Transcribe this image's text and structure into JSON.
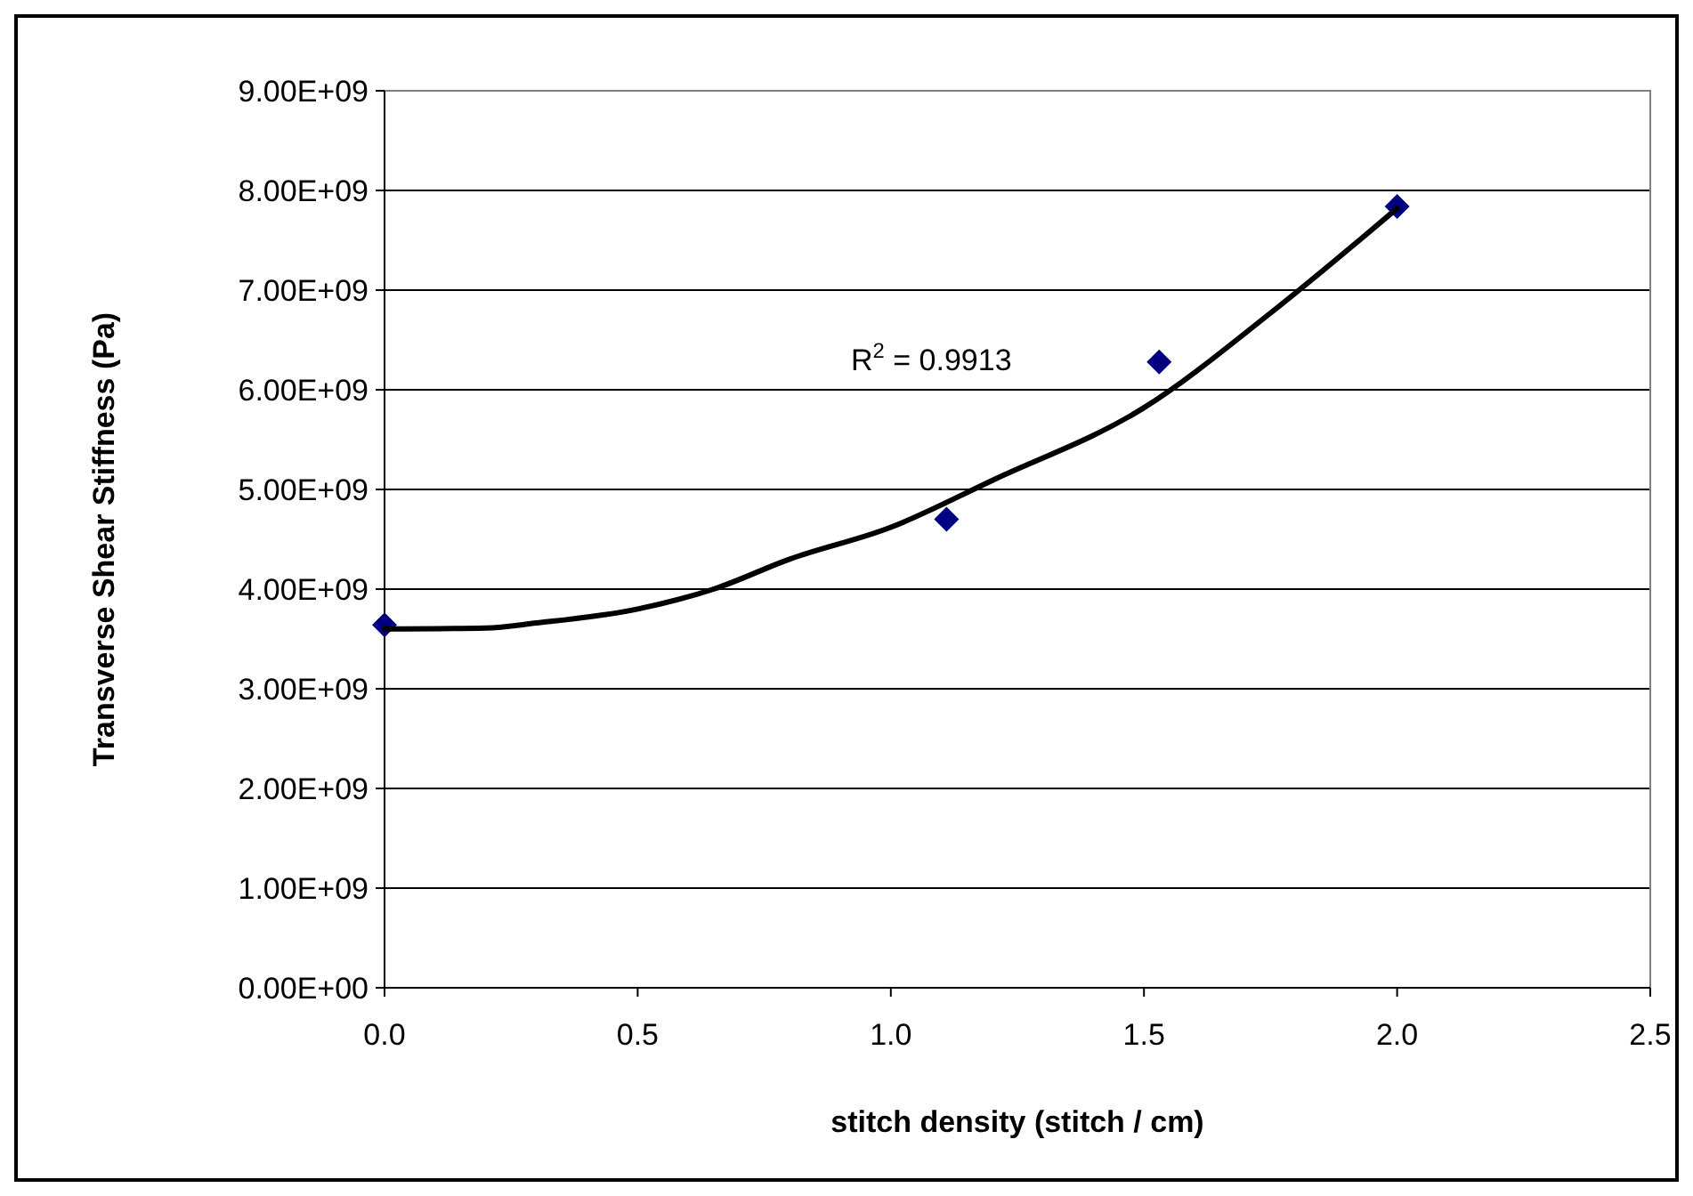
{
  "chart_data": {
    "type": "scatter",
    "xlabel": "stitch density (stitch / cm)",
    "ylabel": "Transverse Shear Stiffness (Pa)",
    "xlim": [
      0,
      2.5
    ],
    "xticks": [
      {
        "value": 0,
        "label": "0.0"
      },
      {
        "value": 0.5,
        "label": "0.5"
      },
      {
        "value": 1,
        "label": "1.0"
      },
      {
        "value": 1.5,
        "label": "1.5"
      },
      {
        "value": 2,
        "label": "2.0"
      },
      {
        "value": 2.5,
        "label": "2.5"
      }
    ],
    "ylim": [
      0,
      9000000000
    ],
    "yticks": [
      {
        "value": 0,
        "label": "0.00E+00"
      },
      {
        "value": 1000000000,
        "label": "1.00E+09"
      },
      {
        "value": 2000000000,
        "label": "2.00E+09"
      },
      {
        "value": 3000000000,
        "label": "3.00E+09"
      },
      {
        "value": 4000000000,
        "label": "4.00E+09"
      },
      {
        "value": 5000000000,
        "label": "5.00E+09"
      },
      {
        "value": 6000000000,
        "label": "6.00E+09"
      },
      {
        "value": 7000000000,
        "label": "7.00E+09"
      },
      {
        "value": 8000000000,
        "label": "8.00E+09"
      },
      {
        "value": 9000000000,
        "label": "9.00E+09"
      }
    ],
    "grid": "y",
    "marker": "diamond",
    "series": [
      {
        "color": "#000080",
        "x": [
          0,
          1.11,
          1.53,
          2.0
        ],
        "values": [
          3640000000,
          4700000000,
          6280000000,
          7840000000
        ]
      },
      {
        "type": "line",
        "color": "#000000",
        "marker": "none",
        "line_style": "solid",
        "x": [
          0,
          0.2,
          0.3,
          0.5,
          0.65,
          0.8,
          1.0,
          1.2,
          1.5,
          1.75,
          2.0
        ],
        "values": [
          3600000000,
          3610000000,
          3660000000,
          3800000000,
          4000000000,
          4300000000,
          4620000000,
          5090000000,
          5820000000,
          6770000000,
          7820000000
        ]
      }
    ],
    "annotations": [
      "R$^{2}$ = 0.9913"
    ]
  }
}
